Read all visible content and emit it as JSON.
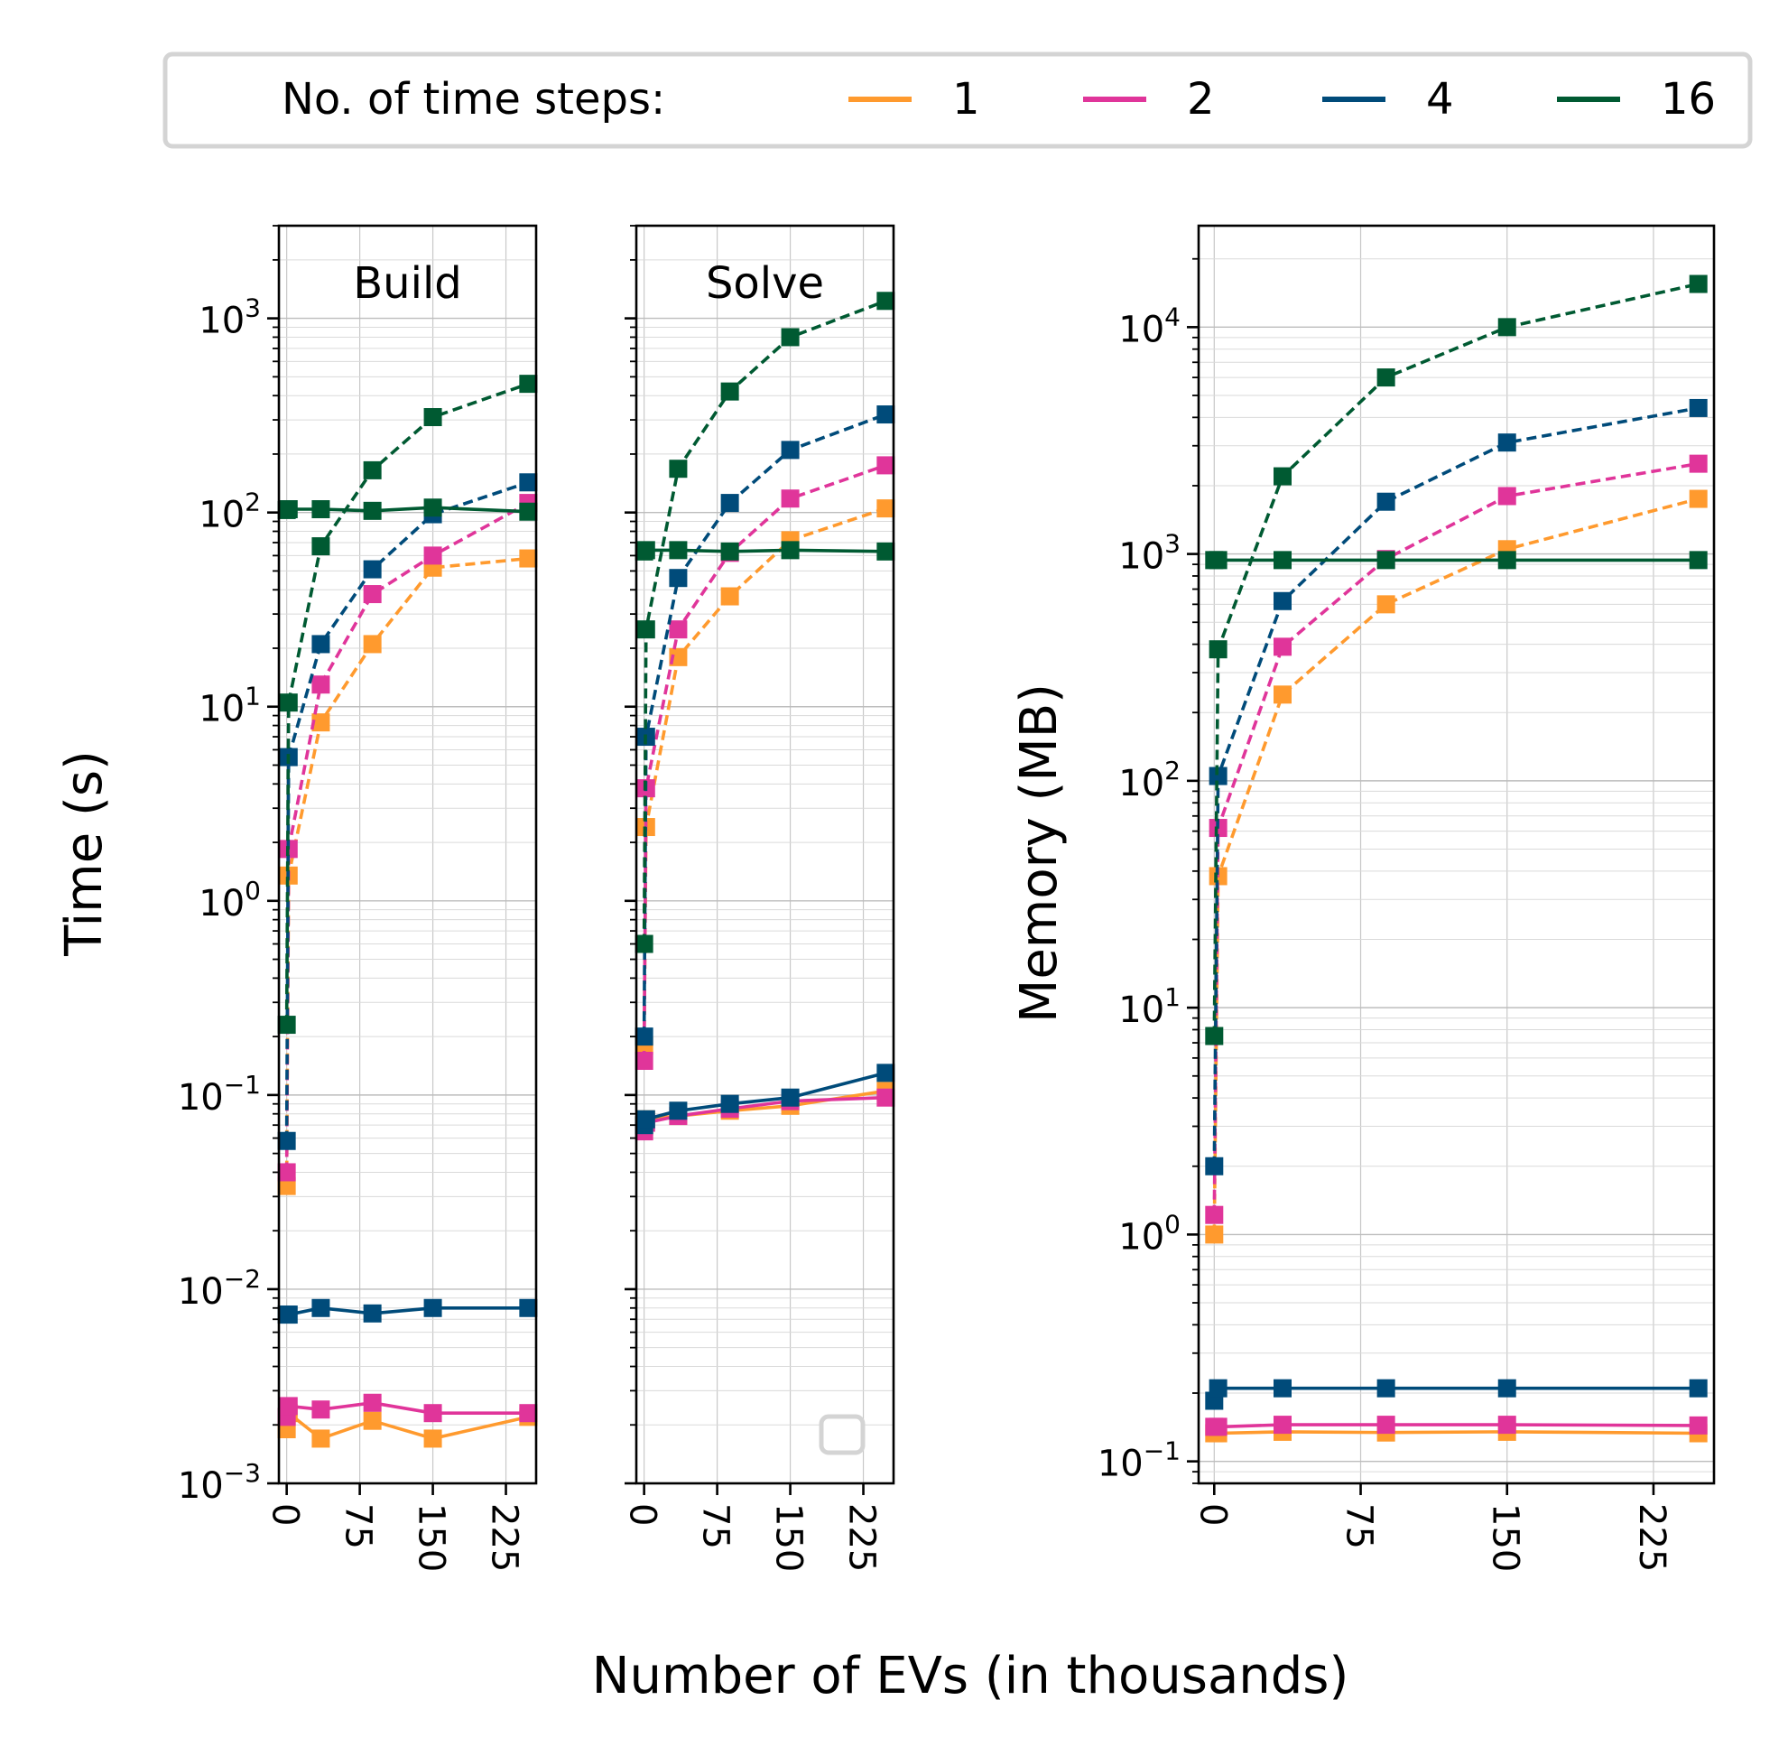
{
  "legend": {
    "title": "No. of time steps:",
    "placement": "top",
    "entries": [
      {
        "label": "1",
        "color": "#FF9A2E"
      },
      {
        "label": "2",
        "color": "#E0359A"
      },
      {
        "label": "4",
        "color": "#004B7A"
      },
      {
        "label": "16",
        "color": "#005A32"
      }
    ]
  },
  "shared_xlabel": "Number of EVs (in thousands)",
  "chart_data": [
    {
      "type": "line",
      "title": "Build",
      "ylabel": "Time (s)",
      "yscale": "log",
      "ylim": [
        0.001,
        3000
      ],
      "yticks": [
        0.001,
        0.01,
        0.1,
        1,
        10,
        100,
        1000
      ],
      "ytick_labels": [
        {
          "base": "10",
          "exp": "−3"
        },
        {
          "base": "10",
          "exp": "−2"
        },
        {
          "base": "10",
          "exp": "−1"
        },
        {
          "base": "10",
          "exp": "0"
        },
        {
          "base": "10",
          "exp": "1"
        },
        {
          "base": "10",
          "exp": "2"
        },
        {
          "base": "10",
          "exp": "3"
        }
      ],
      "xlim": [
        -8,
        256
      ],
      "xticks": [
        0,
        75,
        150,
        225
      ],
      "xtick_labels": [
        "0",
        "75",
        "150",
        "225"
      ],
      "grid": true,
      "x": [
        0,
        2,
        35,
        88,
        150,
        248
      ],
      "series": [
        {
          "name": "1",
          "style": "dashed",
          "values": [
            0.034,
            1.35,
            8.3,
            21,
            52,
            58
          ]
        },
        {
          "name": "2",
          "style": "dashed",
          "values": [
            0.04,
            1.85,
            13,
            38,
            60,
            112
          ]
        },
        {
          "name": "4",
          "style": "dashed",
          "values": [
            0.058,
            5.5,
            21,
            51,
            98,
            143
          ]
        },
        {
          "name": "16",
          "style": "dashed",
          "values": [
            0.23,
            10.5,
            67,
            165,
            310,
            460
          ]
        },
        {
          "name": "1",
          "style": "solid",
          "values": [
            0.0019,
            0.0023,
            0.0017,
            0.0021,
            0.0017,
            0.0022
          ]
        },
        {
          "name": "2",
          "style": "solid",
          "values": [
            0.0022,
            0.0025,
            0.0024,
            0.0026,
            0.0023,
            0.0023
          ]
        },
        {
          "name": "4",
          "style": "solid",
          "values": [
            0.0074,
            0.0074,
            0.008,
            0.0075,
            0.008,
            0.008
          ]
        },
        {
          "name": "16",
          "style": "solid",
          "values": [
            103,
            104,
            104,
            102,
            106,
            101
          ]
        }
      ]
    },
    {
      "type": "line",
      "title": "Solve",
      "ylabel": "",
      "yscale": "log",
      "ylim": [
        0.001,
        3000
      ],
      "yticks": [
        0.001,
        0.01,
        0.1,
        1,
        10,
        100,
        1000
      ],
      "ytick_labels": [],
      "xlim": [
        -8,
        256
      ],
      "xticks": [
        0,
        75,
        150,
        225
      ],
      "xtick_labels": [
        "0",
        "75",
        "150",
        "225"
      ],
      "grid": true,
      "empty_legend_box": true,
      "x": [
        0,
        2,
        35,
        88,
        150,
        248
      ],
      "series": [
        {
          "name": "1",
          "style": "dashed",
          "values": [
            0.18,
            2.4,
            18,
            37,
            72,
            105
          ]
        },
        {
          "name": "2",
          "style": "dashed",
          "values": [
            0.15,
            3.8,
            25,
            62,
            118,
            175
          ]
        },
        {
          "name": "4",
          "style": "dashed",
          "values": [
            0.2,
            7,
            46,
            112,
            210,
            320
          ]
        },
        {
          "name": "16",
          "style": "dashed",
          "values": [
            0.6,
            25,
            168,
            420,
            800,
            1230
          ]
        },
        {
          "name": "1",
          "style": "solid",
          "values": [
            0.069,
            0.075,
            0.078,
            0.083,
            0.088,
            0.105
          ]
        },
        {
          "name": "2",
          "style": "solid",
          "values": [
            0.065,
            0.072,
            0.078,
            0.085,
            0.093,
            0.097
          ]
        },
        {
          "name": "4",
          "style": "solid",
          "values": [
            0.07,
            0.075,
            0.083,
            0.09,
            0.097,
            0.13
          ]
        },
        {
          "name": "16",
          "style": "solid",
          "values": [
            63,
            64,
            64,
            63,
            64,
            63
          ]
        }
      ]
    },
    {
      "type": "line",
      "title": "",
      "ylabel": "Memory (MB)",
      "yscale": "log",
      "ylim": [
        0.08,
        28000
      ],
      "yticks": [
        0.1,
        1,
        10,
        100,
        1000,
        10000
      ],
      "ytick_labels": [
        {
          "base": "10",
          "exp": "−1"
        },
        {
          "base": "10",
          "exp": "0"
        },
        {
          "base": "10",
          "exp": "1"
        },
        {
          "base": "10",
          "exp": "2"
        },
        {
          "base": "10",
          "exp": "3"
        },
        {
          "base": "10",
          "exp": "4"
        }
      ],
      "xlim": [
        -8,
        256
      ],
      "xticks": [
        0,
        75,
        150,
        225
      ],
      "xtick_labels": [
        "0",
        "75",
        "150",
        "225"
      ],
      "grid": true,
      "x": [
        0,
        2,
        35,
        88,
        150,
        248
      ],
      "series": [
        {
          "name": "1",
          "style": "dashed",
          "values": [
            1.0,
            38,
            240,
            600,
            1050,
            1750
          ]
        },
        {
          "name": "2",
          "style": "dashed",
          "values": [
            1.22,
            62,
            390,
            950,
            1800,
            2500
          ]
        },
        {
          "name": "4",
          "style": "dashed",
          "values": [
            2.0,
            105,
            620,
            1700,
            3100,
            4400
          ]
        },
        {
          "name": "16",
          "style": "dashed",
          "values": [
            7.5,
            380,
            2200,
            6000,
            10000,
            15500
          ]
        },
        {
          "name": "1",
          "style": "solid",
          "values": [
            0.133,
            0.133,
            0.135,
            0.134,
            0.135,
            0.133
          ]
        },
        {
          "name": "2",
          "style": "solid",
          "values": [
            0.142,
            0.142,
            0.145,
            0.145,
            0.145,
            0.144
          ]
        },
        {
          "name": "4",
          "style": "solid",
          "values": [
            0.185,
            0.21,
            0.21,
            0.21,
            0.21,
            0.21
          ]
        },
        {
          "name": "16",
          "style": "solid",
          "values": [
            940,
            940,
            940,
            940,
            940,
            940
          ]
        }
      ]
    }
  ]
}
